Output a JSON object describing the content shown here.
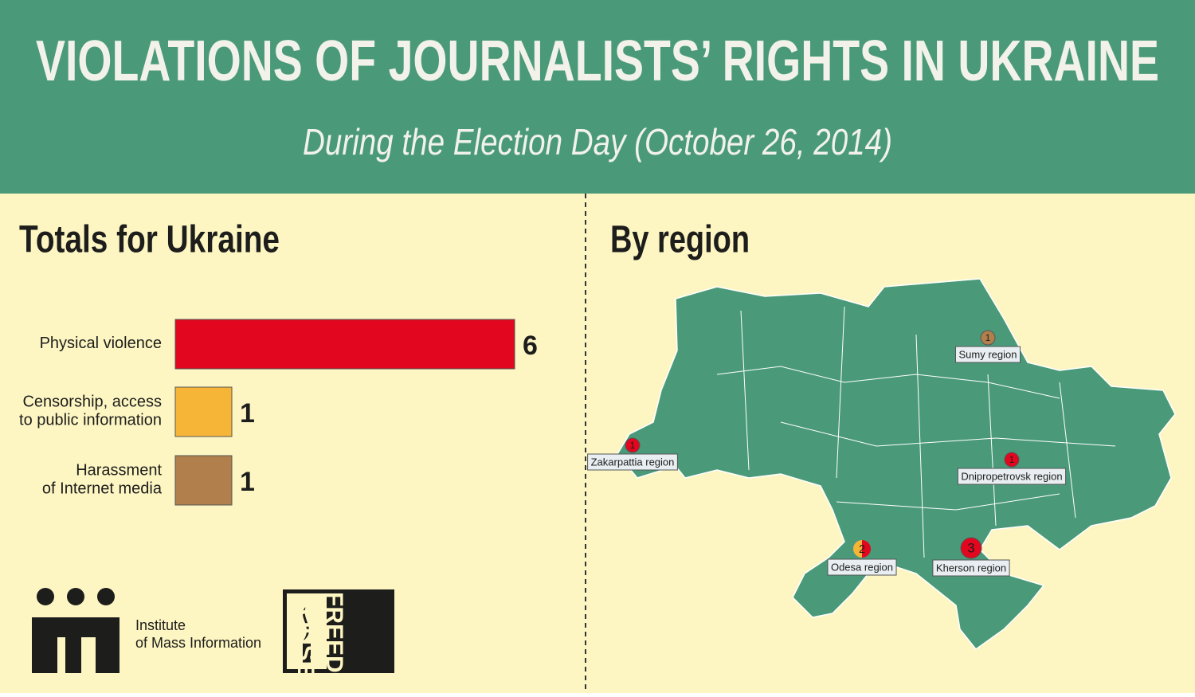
{
  "header": {
    "title": "VIOLATIONS OF JOURNALISTS’ RIGHTS IN UKRAINE",
    "subtitle": "During the Election Day (October 26, 2014)"
  },
  "chart_data": {
    "type": "bar",
    "orientation": "horizontal",
    "title": "Totals for Ukraine",
    "categories": [
      "Physical violence",
      "Censorship, access\nto public information",
      "Harassment\nof Internet media"
    ],
    "values": [
      6,
      1,
      1
    ],
    "colors": [
      "#e2071f",
      "#f7b538",
      "#b07f4c"
    ]
  },
  "map": {
    "title": "By region",
    "regions": [
      {
        "name": "Sumy region",
        "count": 1,
        "colors": [
          "#b07f4c"
        ]
      },
      {
        "name": "Zakarpattia region",
        "count": 1,
        "colors": [
          "#e2071f"
        ]
      },
      {
        "name": "Dnipropetrovsk region",
        "count": 1,
        "colors": [
          "#e2071f"
        ]
      },
      {
        "name": "Odesa region",
        "count": 2,
        "colors": [
          "#f7b538",
          "#e2071f"
        ]
      },
      {
        "name": "Kherson region",
        "count": 3,
        "colors": [
          "#e2071f"
        ]
      }
    ]
  },
  "logos": {
    "imi": "Institute\nof Mass Information",
    "freedom_house": "FREEDOM\nHOUSE"
  }
}
